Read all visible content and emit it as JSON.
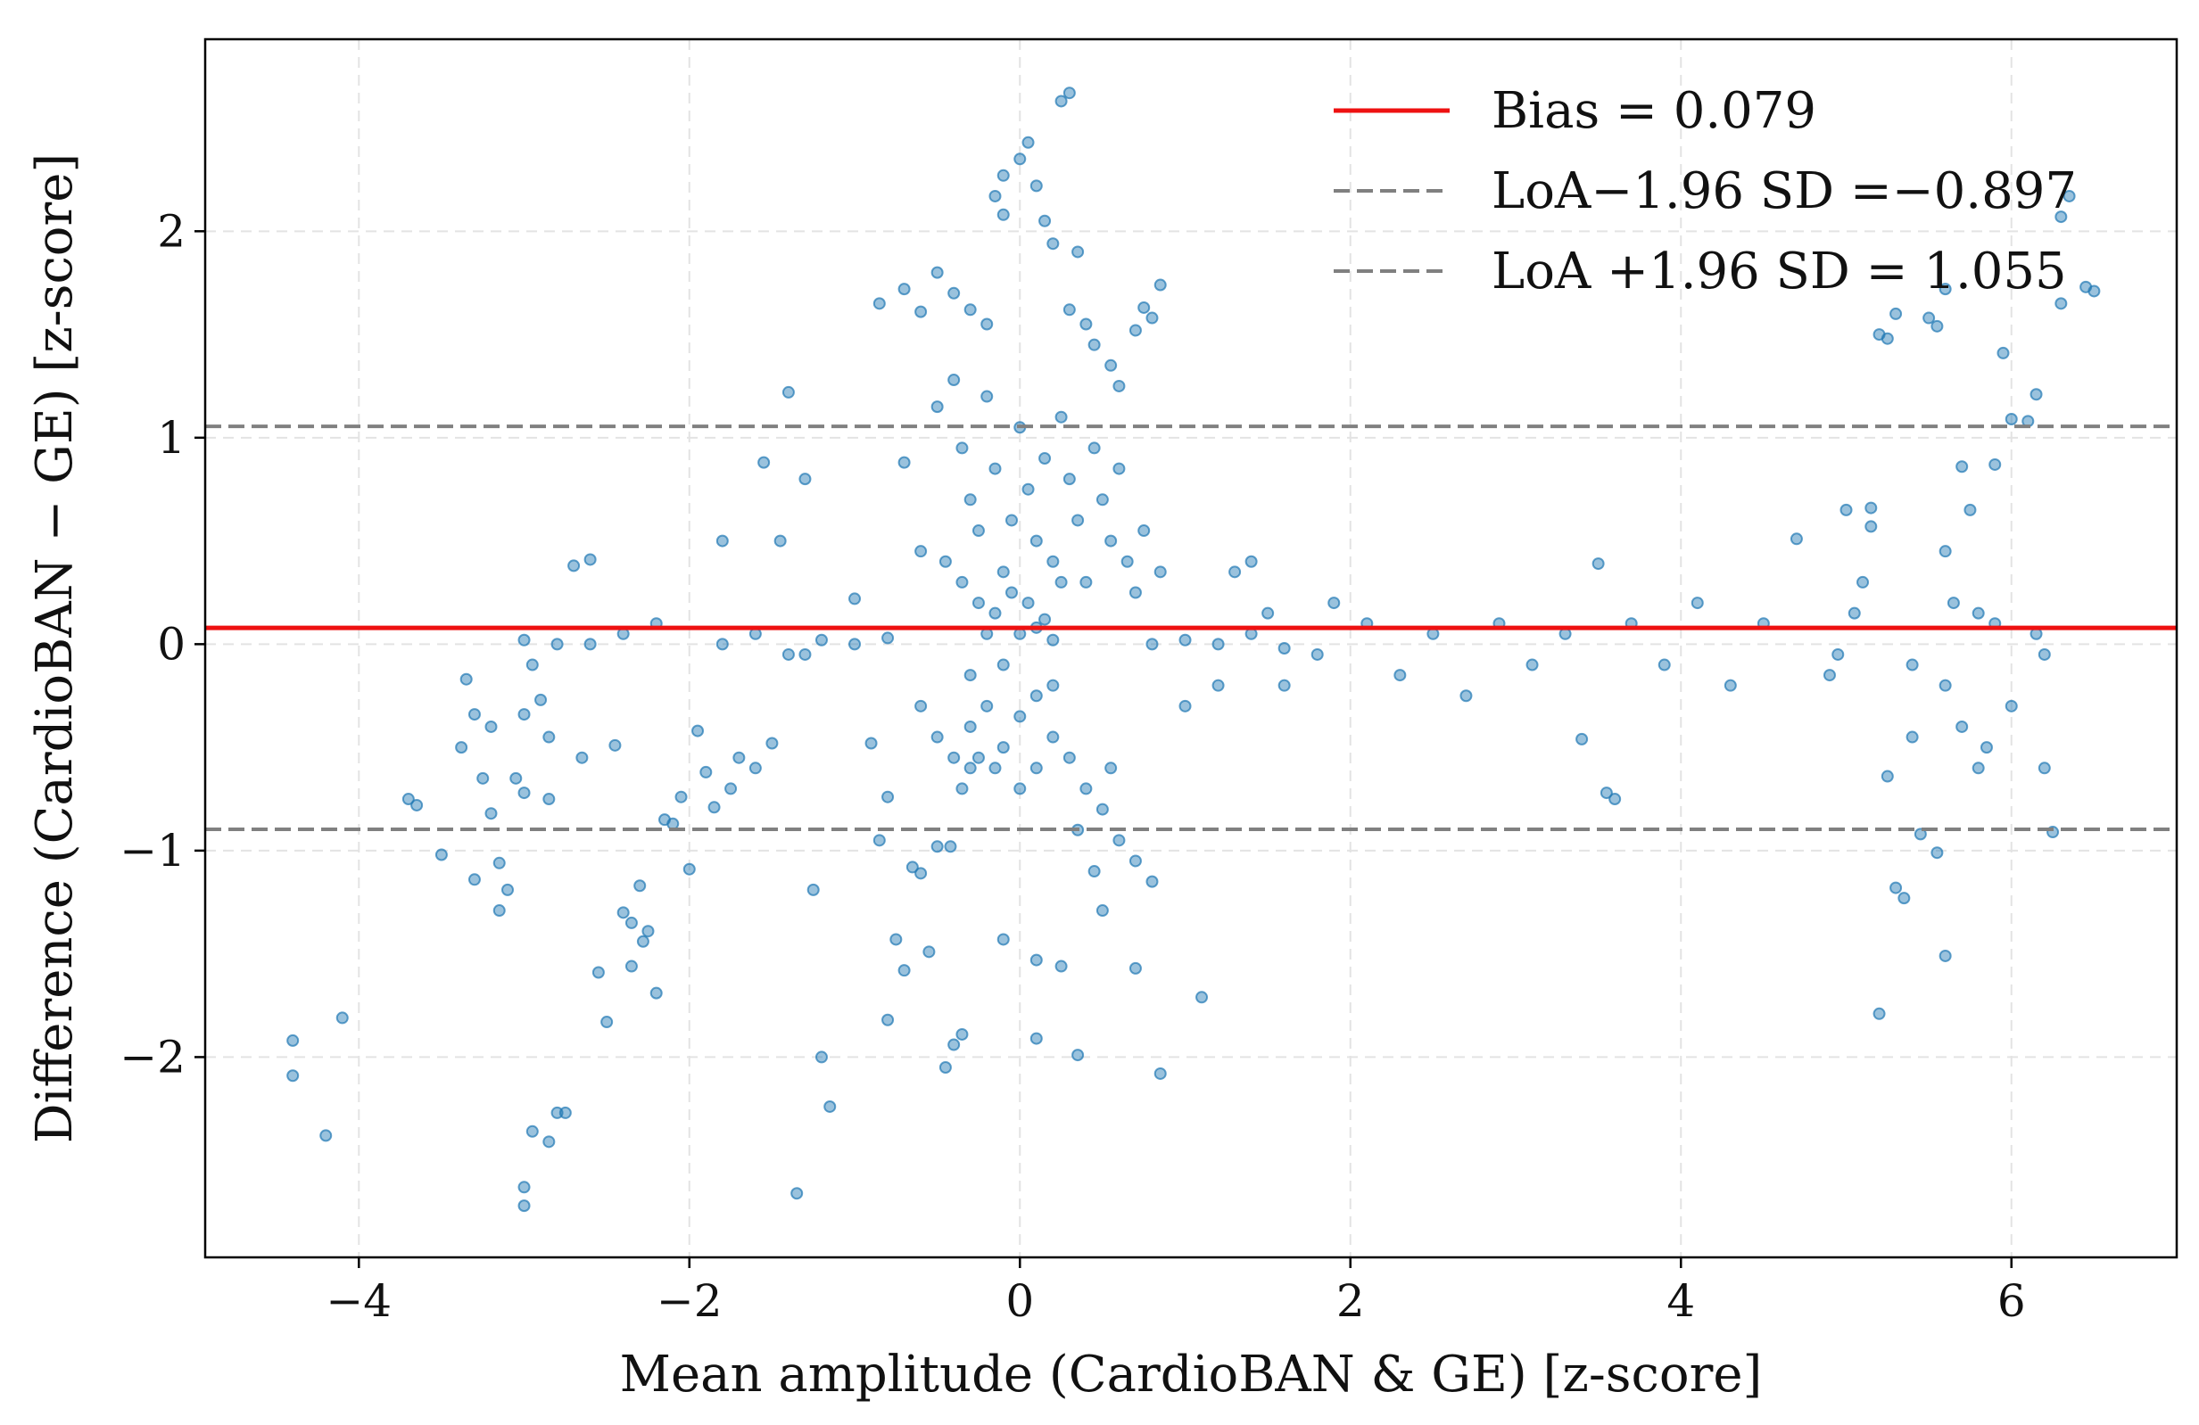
{
  "chart_data": {
    "type": "scatter",
    "title": "",
    "xlabel": "Mean amplitude (CardioBAN & GE) [z-score]",
    "ylabel": "Difference (CardioBAN − GE) [z-score]",
    "xlim": [
      -4.93,
      7.0
    ],
    "ylim": [
      -2.97,
      2.93
    ],
    "xticks": [
      -4,
      -2,
      0,
      2,
      4,
      6
    ],
    "xtick_labels": [
      "−4",
      "−2",
      "0",
      "2",
      "4",
      "6"
    ],
    "yticks": [
      -2,
      -1,
      0,
      1,
      2
    ],
    "ytick_labels": [
      "−2",
      "−1",
      "0",
      "1",
      "2"
    ],
    "grid": true,
    "legend_position": "top-right",
    "reference_lines": [
      {
        "name": "Bias = 0.079",
        "y": 0.079,
        "color": "#ee1111",
        "style": "solid"
      },
      {
        "name": "LoA−1.96 SD =−0.897",
        "y": -0.897,
        "color": "#808080",
        "style": "dashed"
      },
      {
        "name": "LoA +1.96 SD = 1.055",
        "y": 1.055,
        "color": "#808080",
        "style": "dashed"
      }
    ],
    "point_color": "#1f77b4",
    "series": [
      {
        "points": [
          [
            -4.4,
            -1.92
          ],
          [
            -4.4,
            -2.09
          ],
          [
            -4.2,
            -2.38
          ],
          [
            -4.1,
            -1.81
          ],
          [
            -3.7,
            -0.75
          ],
          [
            -3.65,
            -0.78
          ],
          [
            -3.5,
            -1.02
          ],
          [
            -3.38,
            -0.5
          ],
          [
            -3.35,
            -0.17
          ],
          [
            -3.3,
            -0.34
          ],
          [
            -3.3,
            -1.14
          ],
          [
            -3.25,
            -0.65
          ],
          [
            -3.2,
            -0.4
          ],
          [
            -3.2,
            -0.82
          ],
          [
            -3.15,
            -1.06
          ],
          [
            -3.15,
            -1.29
          ],
          [
            -3.1,
            -1.19
          ],
          [
            -3.05,
            -0.65
          ],
          [
            -3.0,
            -0.72
          ],
          [
            -3.0,
            -0.34
          ],
          [
            -2.95,
            -0.1
          ],
          [
            -2.9,
            -0.27
          ],
          [
            -2.85,
            -0.45
          ],
          [
            -2.85,
            -0.75
          ],
          [
            -2.8,
            -2.27
          ],
          [
            -2.75,
            -2.27
          ],
          [
            -3.0,
            -2.63
          ],
          [
            -3.0,
            -2.72
          ],
          [
            -2.95,
            -2.36
          ],
          [
            -2.85,
            -2.41
          ],
          [
            -2.7,
            0.38
          ],
          [
            -2.6,
            0.41
          ],
          [
            -2.65,
            -0.55
          ],
          [
            -2.55,
            -1.59
          ],
          [
            -2.5,
            -1.83
          ],
          [
            -2.45,
            -0.49
          ],
          [
            -2.4,
            -1.3
          ],
          [
            -2.35,
            -1.35
          ],
          [
            -2.35,
            -1.56
          ],
          [
            -2.3,
            -1.17
          ],
          [
            -2.28,
            -1.44
          ],
          [
            -2.25,
            -1.39
          ],
          [
            -2.2,
            -1.69
          ],
          [
            -2.15,
            -0.85
          ],
          [
            -2.1,
            -0.87
          ],
          [
            -2.05,
            -0.74
          ],
          [
            -2.0,
            -1.09
          ],
          [
            -1.95,
            -0.42
          ],
          [
            -1.9,
            -0.62
          ],
          [
            -1.85,
            -0.79
          ],
          [
            -1.8,
            0.5
          ],
          [
            -1.75,
            -0.7
          ],
          [
            -1.7,
            -0.55
          ],
          [
            -1.6,
            -0.6
          ],
          [
            -1.55,
            0.88
          ],
          [
            -1.5,
            -0.48
          ],
          [
            -1.45,
            0.5
          ],
          [
            -1.4,
            1.22
          ],
          [
            -1.3,
            -0.05
          ],
          [
            -1.3,
            0.8
          ],
          [
            -1.25,
            -1.19
          ],
          [
            -1.2,
            -2.0
          ],
          [
            -1.15,
            -2.24
          ],
          [
            -1.35,
            -2.66
          ],
          [
            -1.0,
            0.22
          ],
          [
            -0.9,
            -0.48
          ],
          [
            -0.85,
            -0.95
          ],
          [
            -0.8,
            -1.82
          ],
          [
            -0.8,
            -0.74
          ],
          [
            -0.75,
            -1.43
          ],
          [
            -0.7,
            -1.58
          ],
          [
            -0.65,
            -1.08
          ],
          [
            -0.6,
            -1.11
          ],
          [
            -0.55,
            -1.49
          ],
          [
            -0.5,
            -0.98
          ],
          [
            -0.45,
            -2.05
          ],
          [
            -0.42,
            -0.98
          ],
          [
            -0.4,
            -1.94
          ],
          [
            -0.35,
            -1.89
          ],
          [
            -0.3,
            -0.6
          ],
          [
            -0.1,
            -1.43
          ],
          [
            0.1,
            -1.53
          ],
          [
            0.1,
            -1.91
          ],
          [
            0.25,
            -1.56
          ],
          [
            0.35,
            -1.99
          ],
          [
            0.5,
            -1.29
          ],
          [
            0.7,
            -1.57
          ],
          [
            0.85,
            -2.08
          ],
          [
            1.1,
            -1.71
          ],
          [
            0.85,
            1.74
          ],
          [
            -0.85,
            1.65
          ],
          [
            -0.7,
            1.72
          ],
          [
            -0.6,
            1.61
          ],
          [
            -0.5,
            1.8
          ],
          [
            -0.4,
            1.7
          ],
          [
            -0.3,
            1.62
          ],
          [
            -0.2,
            1.55
          ],
          [
            -0.15,
            2.17
          ],
          [
            -0.1,
            2.27
          ],
          [
            0.0,
            2.35
          ],
          [
            0.05,
            2.43
          ],
          [
            0.1,
            2.22
          ],
          [
            0.15,
            2.05
          ],
          [
            0.2,
            1.94
          ],
          [
            0.25,
            2.63
          ],
          [
            0.3,
            2.67
          ],
          [
            0.35,
            1.9
          ],
          [
            -0.1,
            2.08
          ],
          [
            0.3,
            1.62
          ],
          [
            0.4,
            1.55
          ],
          [
            0.45,
            1.45
          ],
          [
            0.55,
            1.35
          ],
          [
            0.6,
            1.25
          ],
          [
            0.7,
            1.52
          ],
          [
            0.75,
            1.63
          ],
          [
            0.8,
            1.58
          ],
          [
            -0.7,
            0.88
          ],
          [
            -0.6,
            0.45
          ],
          [
            -0.5,
            1.15
          ],
          [
            -0.4,
            1.28
          ],
          [
            -0.35,
            0.95
          ],
          [
            -0.3,
            0.7
          ],
          [
            -0.25,
            0.55
          ],
          [
            -0.2,
            1.2
          ],
          [
            -0.15,
            0.85
          ],
          [
            -0.1,
            0.35
          ],
          [
            -0.05,
            0.6
          ],
          [
            0.0,
            1.05
          ],
          [
            0.05,
            0.75
          ],
          [
            0.1,
            0.5
          ],
          [
            0.15,
            0.9
          ],
          [
            0.2,
            0.4
          ],
          [
            0.25,
            1.1
          ],
          [
            0.3,
            0.8
          ],
          [
            0.35,
            0.6
          ],
          [
            0.4,
            0.3
          ],
          [
            0.45,
            0.95
          ],
          [
            0.5,
            0.7
          ],
          [
            0.55,
            0.5
          ],
          [
            0.6,
            0.85
          ],
          [
            0.65,
            0.4
          ],
          [
            0.7,
            0.25
          ],
          [
            0.75,
            0.55
          ],
          [
            0.85,
            0.35
          ],
          [
            -0.45,
            0.4
          ],
          [
            -0.35,
            0.3
          ],
          [
            -0.25,
            0.2
          ],
          [
            -0.15,
            0.15
          ],
          [
            -0.05,
            0.25
          ],
          [
            0.05,
            0.2
          ],
          [
            0.15,
            0.12
          ],
          [
            0.25,
            0.3
          ],
          [
            -0.6,
            -0.3
          ],
          [
            -0.5,
            -0.45
          ],
          [
            -0.4,
            -0.55
          ],
          [
            -0.3,
            -0.4
          ],
          [
            -0.2,
            -0.3
          ],
          [
            -0.1,
            -0.5
          ],
          [
            0.0,
            -0.35
          ],
          [
            0.1,
            -0.6
          ],
          [
            0.2,
            -0.45
          ],
          [
            0.3,
            -0.55
          ],
          [
            0.4,
            -0.7
          ],
          [
            0.5,
            -0.8
          ],
          [
            0.6,
            -0.95
          ],
          [
            0.7,
            -1.05
          ],
          [
            0.8,
            -1.15
          ],
          [
            0.35,
            -0.9
          ],
          [
            0.45,
            -1.1
          ],
          [
            0.55,
            -0.6
          ],
          [
            -0.35,
            -0.7
          ],
          [
            -0.25,
            -0.55
          ],
          [
            -0.15,
            -0.6
          ],
          [
            0.0,
            -0.7
          ],
          [
            0.1,
            -0.25
          ],
          [
            0.2,
            -0.2
          ],
          [
            -0.3,
            -0.15
          ],
          [
            -0.1,
            -0.1
          ],
          [
            0.0,
            0.05
          ],
          [
            0.1,
            0.08
          ],
          [
            -0.2,
            0.05
          ],
          [
            0.2,
            0.02
          ],
          [
            -1.8,
            0.0
          ],
          [
            -1.6,
            0.05
          ],
          [
            -1.4,
            -0.05
          ],
          [
            -1.2,
            0.02
          ],
          [
            -1.0,
            0.0
          ],
          [
            -0.8,
            0.03
          ],
          [
            0.8,
            0.0
          ],
          [
            1.0,
            0.02
          ],
          [
            1.2,
            0.0
          ],
          [
            1.4,
            0.05
          ],
          [
            1.6,
            -0.02
          ],
          [
            -2.6,
            0.0
          ],
          [
            -2.4,
            0.05
          ],
          [
            -2.2,
            0.1
          ],
          [
            -2.8,
            0.0
          ],
          [
            -3.0,
            0.02
          ],
          [
            1.0,
            -0.3
          ],
          [
            1.2,
            -0.2
          ],
          [
            1.3,
            0.35
          ],
          [
            1.4,
            0.4
          ],
          [
            1.5,
            0.15
          ],
          [
            1.6,
            -0.2
          ],
          [
            1.8,
            -0.05
          ],
          [
            1.9,
            0.2
          ],
          [
            2.1,
            0.1
          ],
          [
            2.3,
            -0.15
          ],
          [
            2.5,
            0.05
          ],
          [
            2.7,
            -0.25
          ],
          [
            2.9,
            0.1
          ],
          [
            3.1,
            -0.1
          ],
          [
            3.3,
            0.05
          ],
          [
            3.5,
            0.39
          ],
          [
            3.55,
            -0.72
          ],
          [
            3.6,
            -0.75
          ],
          [
            3.4,
            -0.46
          ],
          [
            3.7,
            0.1
          ],
          [
            3.9,
            -0.1
          ],
          [
            4.1,
            0.2
          ],
          [
            4.3,
            -0.2
          ],
          [
            4.5,
            0.1
          ],
          [
            4.7,
            0.51
          ],
          [
            4.9,
            -0.15
          ],
          [
            5.0,
            0.65
          ],
          [
            5.1,
            0.3
          ],
          [
            5.15,
            0.66
          ],
          [
            5.15,
            0.57
          ],
          [
            5.2,
            1.5
          ],
          [
            5.25,
            1.48
          ],
          [
            5.3,
            1.6
          ],
          [
            5.2,
            -1.79
          ],
          [
            5.25,
            -0.64
          ],
          [
            5.3,
            -1.18
          ],
          [
            5.35,
            -1.23
          ],
          [
            5.4,
            -0.45
          ],
          [
            5.45,
            -0.92
          ],
          [
            5.5,
            1.58
          ],
          [
            5.55,
            1.54
          ],
          [
            5.6,
            1.72
          ],
          [
            5.7,
            0.86
          ],
          [
            5.75,
            0.65
          ],
          [
            5.55,
            -1.01
          ],
          [
            5.6,
            -1.51
          ],
          [
            5.6,
            0.45
          ],
          [
            5.65,
            0.2
          ],
          [
            5.8,
            -0.6
          ],
          [
            5.85,
            -0.5
          ],
          [
            5.9,
            0.87
          ],
          [
            5.95,
            1.41
          ],
          [
            6.0,
            1.09
          ],
          [
            6.1,
            1.08
          ],
          [
            6.15,
            1.21
          ],
          [
            6.2,
            -0.6
          ],
          [
            6.25,
            -0.91
          ],
          [
            6.3,
            1.65
          ],
          [
            6.3,
            2.07
          ],
          [
            6.35,
            2.17
          ],
          [
            6.5,
            1.71
          ],
          [
            6.45,
            1.73
          ],
          [
            5.9,
            0.1
          ],
          [
            6.0,
            -0.3
          ],
          [
            6.15,
            0.05
          ],
          [
            6.2,
            -0.05
          ],
          [
            5.4,
            -0.1
          ],
          [
            5.6,
            -0.2
          ],
          [
            5.7,
            -0.4
          ],
          [
            5.8,
            0.15
          ],
          [
            4.95,
            -0.05
          ],
          [
            5.05,
            0.15
          ]
        ]
      }
    ]
  }
}
